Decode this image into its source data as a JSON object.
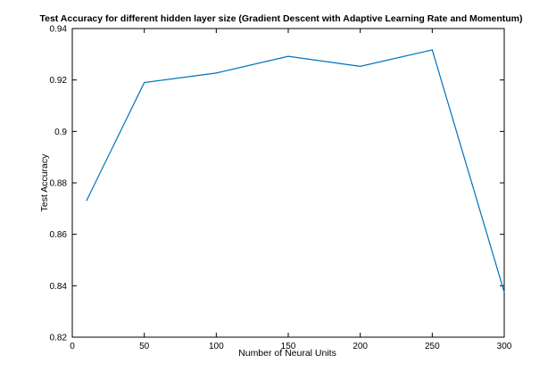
{
  "chart_data": {
    "type": "line",
    "title": "Test Accuracy for different hidden layer size (Gradient Descent with Adaptive Learning Rate and Momentum)",
    "xlabel": "Number of Neural Units",
    "ylabel": "Test Accuracy",
    "xlim": [
      0,
      300
    ],
    "ylim": [
      0.82,
      0.94
    ],
    "xticks": [
      0,
      50,
      100,
      150,
      200,
      250,
      300
    ],
    "xtick_labels": [
      "0",
      "50",
      "100",
      "150",
      "200",
      "250",
      "300"
    ],
    "yticks": [
      0.82,
      0.84,
      0.86,
      0.88,
      0.9,
      0.92,
      0.94
    ],
    "ytick_labels": [
      "0.82",
      "0.84",
      "0.86",
      "0.88",
      "0.9",
      "0.92",
      "0.94"
    ],
    "grid": false,
    "series": [
      {
        "color": "#0072bd",
        "x": [
          10,
          50,
          100,
          150,
          200,
          250,
          300
        ],
        "y": [
          0.8732,
          0.919,
          0.9227,
          0.9292,
          0.9253,
          0.9317,
          0.8375
        ]
      }
    ]
  }
}
